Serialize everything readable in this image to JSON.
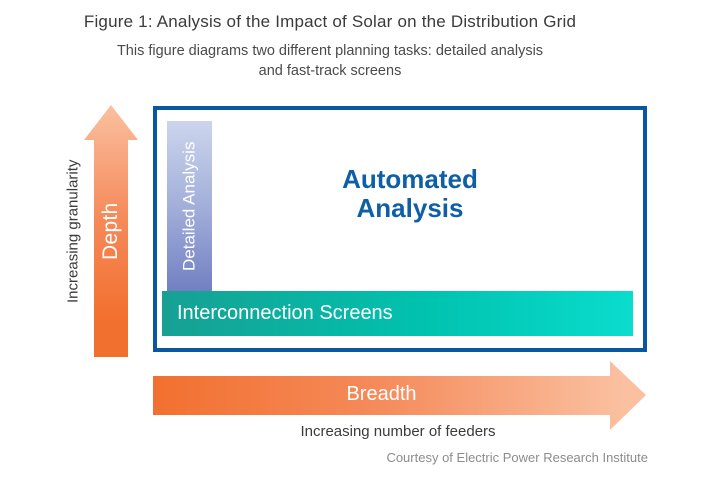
{
  "figure": {
    "title": "Figure 1: Analysis of the Impact of Solar on the Distribution Grid",
    "subtitle_line1": "This figure diagrams two different planning tasks: detailed analysis",
    "subtitle_line2": "and fast-track screens",
    "credit": "Courtesy of Electric Power Research Institute"
  },
  "diagram": {
    "vertical_axis": {
      "label": "Depth",
      "caption": "Increasing granularity"
    },
    "horizontal_axis": {
      "label": "Breadth",
      "caption": "Increasing number of feeders"
    },
    "regions": {
      "detailed_bar_label": "Detailed Analysis",
      "automated_line1": "Automated",
      "automated_line2": "Analysis",
      "screens_bar_label": "Interconnection Screens"
    },
    "colors": {
      "box_border_blue": "#0956a3",
      "automated_text_blue": "#0e5fa6",
      "detailed_bar_gradient_top": "#ccd5ec",
      "detailed_bar_gradient_bottom": "#7280c2",
      "screens_bar_gradient_left": "#17a093",
      "screens_bar_gradient_right": "#0adccd",
      "arrow_gradient_dark": "#f2702f",
      "arrow_gradient_light": "#fac0a0",
      "title_text": "#3b3b3b",
      "credit_text": "#8c8c8c"
    }
  }
}
